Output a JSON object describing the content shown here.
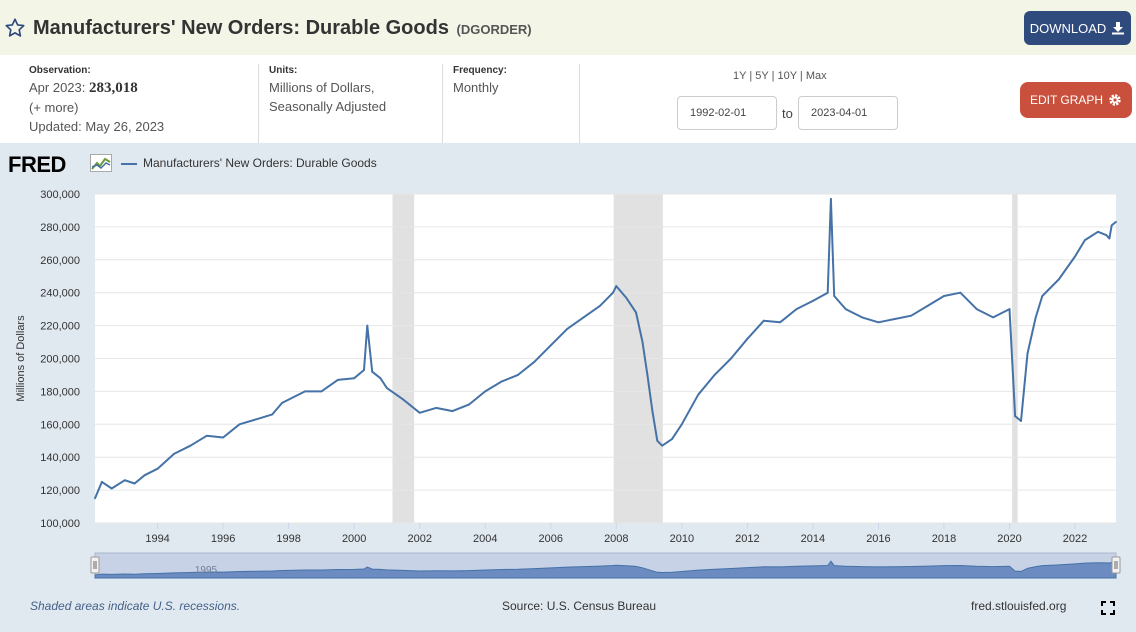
{
  "header": {
    "title": "Manufacturers' New Orders: Durable Goods",
    "series_id": "(DGORDER)",
    "download_label": "DOWNLOAD"
  },
  "meta": {
    "observation_label": "Observation:",
    "observation_date": "Apr 2023:",
    "observation_value": "283,018",
    "more": "(+ more)",
    "updated": "Updated: May 26, 2023",
    "units_label": "Units:",
    "units_line1": "Millions of Dollars,",
    "units_line2": "Seasonally Adjusted",
    "frequency_label": "Frequency:",
    "frequency": "Monthly"
  },
  "controls": {
    "ranges": [
      "1Y",
      "5Y",
      "10Y",
      "Max"
    ],
    "start_date": "1992-02-01",
    "to_label": "to",
    "end_date": "2023-04-01",
    "edit_label": "EDIT GRAPH"
  },
  "legend": {
    "logo": "FRED",
    "series_name": "Manufacturers' New Orders: Durable Goods"
  },
  "footer": {
    "recession_note": "Shaded areas indicate U.S. recessions.",
    "source": "Source: U.S. Census Bureau",
    "site": "fred.stlouisfed.org",
    "nav_label": "1995"
  },
  "colors": {
    "series": "#4572a7",
    "recession": "#e1e1e1",
    "panel": "#e1e9f0",
    "header": "#f3f6e7",
    "download": "#2f4a7d",
    "edit": "#c9503c"
  },
  "chart_data": {
    "type": "line",
    "title": "",
    "xlabel": "",
    "ylabel": "Millions of Dollars",
    "xlim": [
      1992.09,
      2023.25
    ],
    "ylim": [
      100000,
      300000
    ],
    "y_ticks": [
      100000,
      120000,
      140000,
      160000,
      180000,
      200000,
      220000,
      240000,
      260000,
      280000,
      300000
    ],
    "y_tick_labels": [
      "100,000",
      "120,000",
      "140,000",
      "160,000",
      "180,000",
      "200,000",
      "220,000",
      "240,000",
      "260,000",
      "280,000",
      "300,000"
    ],
    "x_ticks": [
      1994,
      1996,
      1998,
      2000,
      2002,
      2004,
      2006,
      2008,
      2010,
      2012,
      2014,
      2016,
      2018,
      2020,
      2022
    ],
    "recessions": [
      [
        2001.17,
        2001.83
      ],
      [
        2007.92,
        2009.42
      ],
      [
        2020.08,
        2020.25
      ]
    ],
    "grid": "horizontal",
    "series": [
      {
        "name": "Manufacturers' New Orders: Durable Goods",
        "points": [
          [
            1992.09,
            115000
          ],
          [
            1992.3,
            125000
          ],
          [
            1992.6,
            121000
          ],
          [
            1993.0,
            126000
          ],
          [
            1993.3,
            124000
          ],
          [
            1993.6,
            129000
          ],
          [
            1994.0,
            133000
          ],
          [
            1994.5,
            142000
          ],
          [
            1995.0,
            147000
          ],
          [
            1995.5,
            153000
          ],
          [
            1996.0,
            152000
          ],
          [
            1996.5,
            160000
          ],
          [
            1997.0,
            163000
          ],
          [
            1997.5,
            166000
          ],
          [
            1997.8,
            173000
          ],
          [
            1998.0,
            175000
          ],
          [
            1998.5,
            180000
          ],
          [
            1999.0,
            180000
          ],
          [
            1999.5,
            187000
          ],
          [
            2000.0,
            188000
          ],
          [
            2000.3,
            193000
          ],
          [
            2000.4,
            220000
          ],
          [
            2000.55,
            192000
          ],
          [
            2000.8,
            188000
          ],
          [
            2001.0,
            182000
          ],
          [
            2001.5,
            175000
          ],
          [
            2002.0,
            167000
          ],
          [
            2002.5,
            170000
          ],
          [
            2003.0,
            168000
          ],
          [
            2003.5,
            172000
          ],
          [
            2004.0,
            180000
          ],
          [
            2004.5,
            186000
          ],
          [
            2005.0,
            190000
          ],
          [
            2005.5,
            198000
          ],
          [
            2006.0,
            208000
          ],
          [
            2006.5,
            218000
          ],
          [
            2007.0,
            225000
          ],
          [
            2007.5,
            232000
          ],
          [
            2007.9,
            240000
          ],
          [
            2008.0,
            244000
          ],
          [
            2008.3,
            237000
          ],
          [
            2008.6,
            228000
          ],
          [
            2008.8,
            210000
          ],
          [
            2008.95,
            190000
          ],
          [
            2009.1,
            168000
          ],
          [
            2009.25,
            150000
          ],
          [
            2009.4,
            147000
          ],
          [
            2009.7,
            151000
          ],
          [
            2010.0,
            160000
          ],
          [
            2010.5,
            178000
          ],
          [
            2011.0,
            190000
          ],
          [
            2011.5,
            200000
          ],
          [
            2012.0,
            212000
          ],
          [
            2012.5,
            223000
          ],
          [
            2013.0,
            222000
          ],
          [
            2013.5,
            230000
          ],
          [
            2014.0,
            235000
          ],
          [
            2014.45,
            240000
          ],
          [
            2014.55,
            297000
          ],
          [
            2014.65,
            238000
          ],
          [
            2015.0,
            230000
          ],
          [
            2015.5,
            225000
          ],
          [
            2016.0,
            222000
          ],
          [
            2016.5,
            224000
          ],
          [
            2017.0,
            226000
          ],
          [
            2017.5,
            232000
          ],
          [
            2018.0,
            238000
          ],
          [
            2018.5,
            240000
          ],
          [
            2019.0,
            230000
          ],
          [
            2019.5,
            225000
          ],
          [
            2020.0,
            230000
          ],
          [
            2020.17,
            165000
          ],
          [
            2020.35,
            162000
          ],
          [
            2020.55,
            203000
          ],
          [
            2020.8,
            225000
          ],
          [
            2021.0,
            238000
          ],
          [
            2021.5,
            248000
          ],
          [
            2022.0,
            262000
          ],
          [
            2022.3,
            272000
          ],
          [
            2022.7,
            277000
          ],
          [
            2022.95,
            275000
          ],
          [
            2023.05,
            273000
          ],
          [
            2023.12,
            281000
          ],
          [
            2023.25,
            283018
          ]
        ]
      }
    ]
  }
}
